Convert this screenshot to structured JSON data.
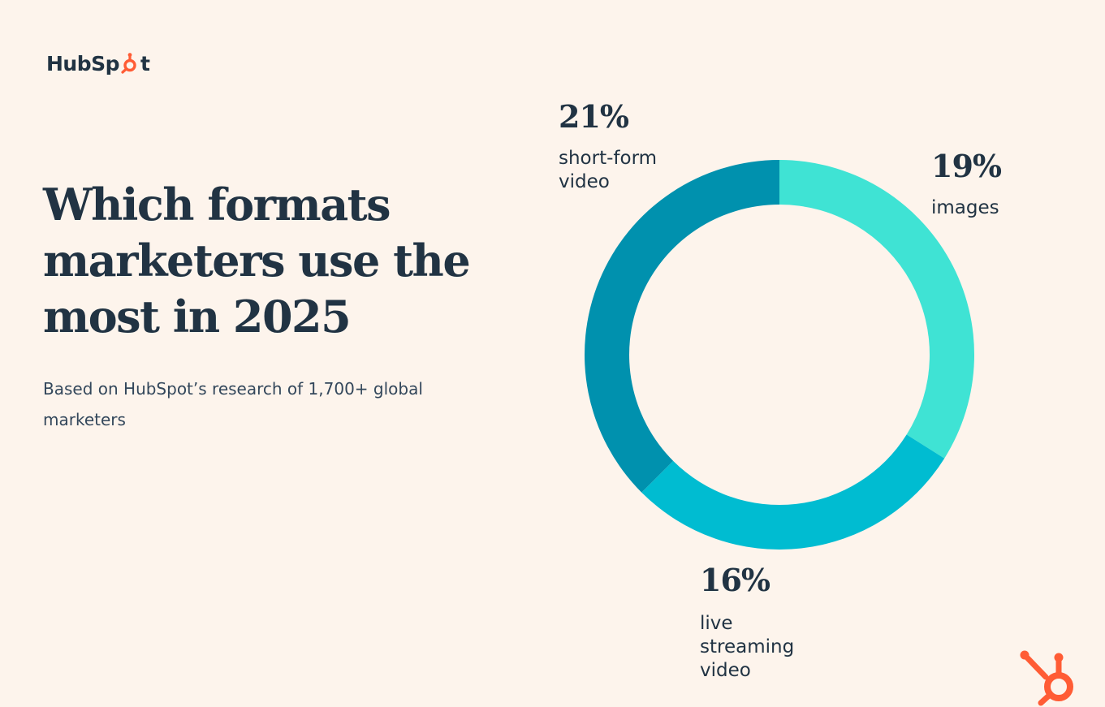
{
  "brand": {
    "logo_text_left": "HubSp",
    "logo_text_right": "t",
    "accent_color": "#ff5c35"
  },
  "header": {
    "title": "Which formats marketers use the most in 2025",
    "subtitle": "Based on HubSpot’s research of 1,700+ global marketers"
  },
  "chart_data": {
    "type": "pie",
    "style": "donut",
    "title": "Which formats marketers use the most in 2025",
    "categories": [
      "short-form video",
      "images",
      "live streaming video"
    ],
    "values": [
      21,
      19,
      16
    ],
    "unit": "%",
    "value_labels": [
      "21%",
      "19%",
      "16%"
    ],
    "label_lines": [
      [
        "short-form",
        "video"
      ],
      [
        "images"
      ],
      [
        "live",
        "streaming",
        "video"
      ]
    ],
    "colors": [
      "#0091ae",
      "#3fe3d4",
      "#00bcd1"
    ],
    "legend": "none"
  }
}
